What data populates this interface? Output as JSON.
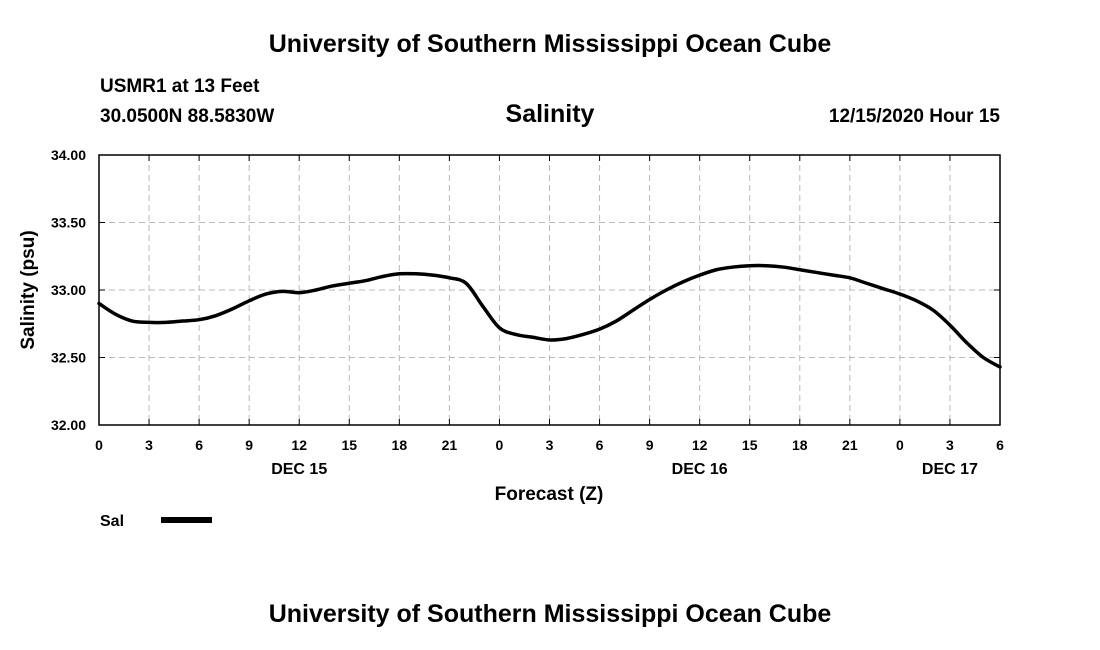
{
  "header": {
    "title_top": "University of Southern Mississippi Ocean Cube",
    "station": "USMR1 at 13 Feet",
    "coords": "30.0500N 88.5830W",
    "parameter": "Salinity",
    "timestamp": "12/15/2020 Hour 15",
    "title_bottom": "University of Southern Mississippi Ocean Cube"
  },
  "legend": {
    "label": "Sal"
  },
  "chart_data": {
    "type": "line",
    "title": "Salinity",
    "xlabel": "Forecast (Z)",
    "ylabel": "Salinity (psu)",
    "ylim": [
      32.0,
      34.0
    ],
    "yticks": [
      32.0,
      32.5,
      33.0,
      33.5,
      34.0
    ],
    "ytick_labels": [
      "32.00",
      "32.50",
      "33.00",
      "33.50",
      "34.00"
    ],
    "xlim": [
      0,
      54
    ],
    "xticks": [
      0,
      3,
      6,
      9,
      12,
      15,
      18,
      21,
      24,
      27,
      30,
      33,
      36,
      39,
      42,
      45,
      48,
      51,
      54
    ],
    "xtick_labels": [
      "0",
      "3",
      "6",
      "9",
      "12",
      "15",
      "18",
      "21",
      "0",
      "3",
      "6",
      "9",
      "12",
      "15",
      "18",
      "21",
      "0",
      "3",
      "6"
    ],
    "day_labels": [
      {
        "x": 12,
        "label": "DEC 15"
      },
      {
        "x": 36,
        "label": "DEC 16"
      },
      {
        "x": 51,
        "label": "DEC 17"
      }
    ],
    "grid": true,
    "legend_position": "bottom-left",
    "series": [
      {
        "name": "Sal",
        "color": "#000000",
        "x": [
          0,
          1,
          2,
          3,
          4,
          5,
          6,
          7,
          8,
          9,
          10,
          11,
          12,
          13,
          14,
          15,
          16,
          17,
          18,
          19,
          20,
          21,
          22,
          23,
          24,
          25,
          26,
          27,
          28,
          29,
          30,
          31,
          32,
          33,
          34,
          35,
          36,
          37,
          38,
          39,
          40,
          41,
          42,
          43,
          44,
          45,
          46,
          47,
          48,
          49,
          50,
          51,
          52,
          53,
          54
        ],
        "values": [
          32.9,
          32.82,
          32.77,
          32.76,
          32.76,
          32.77,
          32.78,
          32.81,
          32.86,
          32.92,
          32.97,
          32.99,
          32.98,
          33.0,
          33.03,
          33.05,
          33.07,
          33.1,
          33.12,
          33.12,
          33.11,
          33.09,
          33.05,
          32.88,
          32.72,
          32.67,
          32.65,
          32.63,
          32.64,
          32.67,
          32.71,
          32.77,
          32.85,
          32.93,
          33.0,
          33.06,
          33.11,
          33.15,
          33.17,
          33.18,
          33.18,
          33.17,
          33.15,
          33.13,
          33.11,
          33.09,
          33.05,
          33.01,
          32.97,
          32.92,
          32.85,
          32.74,
          32.61,
          32.5,
          32.43
        ]
      }
    ]
  }
}
